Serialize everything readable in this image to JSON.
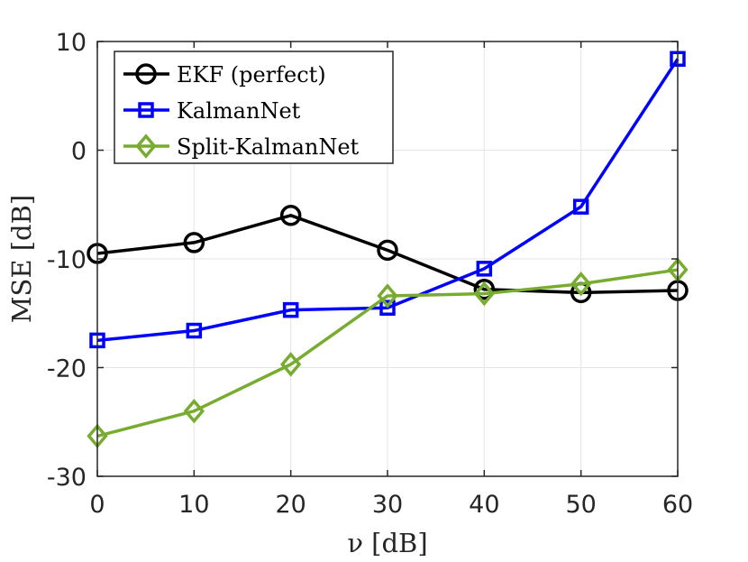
{
  "chart_data": {
    "type": "line",
    "title": "",
    "xlabel": "ν [dB]",
    "ylabel": "MSE [dB]",
    "x": [
      0,
      10,
      20,
      30,
      40,
      50,
      60
    ],
    "xlim": [
      0,
      60
    ],
    "ylim": [
      -30,
      10
    ],
    "xticks": [
      "0",
      "10",
      "20",
      "30",
      "40",
      "50",
      "60"
    ],
    "yticks": [
      "10",
      "0",
      "-10",
      "-20",
      "-30"
    ],
    "grid": true,
    "legend_position": "top-left",
    "series": [
      {
        "name": "EKF (perfect)",
        "color": "#000000",
        "marker": "circle",
        "values": [
          -9.5,
          -8.5,
          -6.0,
          -9.2,
          -12.8,
          -13.1,
          -12.9
        ]
      },
      {
        "name": "KalmanNet",
        "color": "#0000ff",
        "marker": "square",
        "values": [
          -17.5,
          -16.6,
          -14.7,
          -14.5,
          -10.9,
          -5.2,
          8.4
        ]
      },
      {
        "name": "Split-KalmanNet",
        "color": "#77ac30",
        "marker": "diamond",
        "values": [
          -26.3,
          -24.0,
          -19.7,
          -13.4,
          -13.2,
          -12.3,
          -11.0
        ]
      }
    ]
  }
}
